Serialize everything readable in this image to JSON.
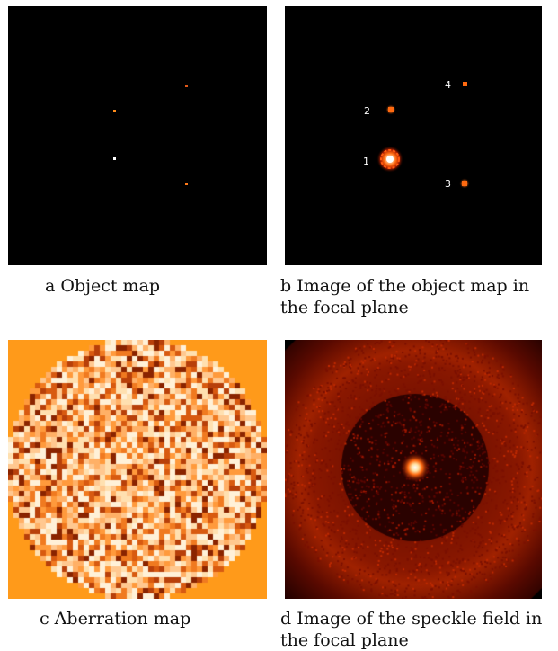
{
  "figure": {
    "panels": [
      {
        "id": "a",
        "caption": "a Object map"
      },
      {
        "id": "b",
        "caption": "b Image of the object map in the focal plane",
        "star_labels": [
          "1",
          "2",
          "3",
          "4"
        ]
      },
      {
        "id": "c",
        "caption": "c Aberration map"
      },
      {
        "id": "d",
        "caption": "d Image of the speckle field in the focal plane"
      }
    ],
    "colors": {
      "background": "#000000",
      "hot_white": "#ffffff",
      "hot_orange": "#ff7a1a",
      "hot_red": "#8b0000",
      "pupil_fill": "#ff9a1a"
    }
  }
}
